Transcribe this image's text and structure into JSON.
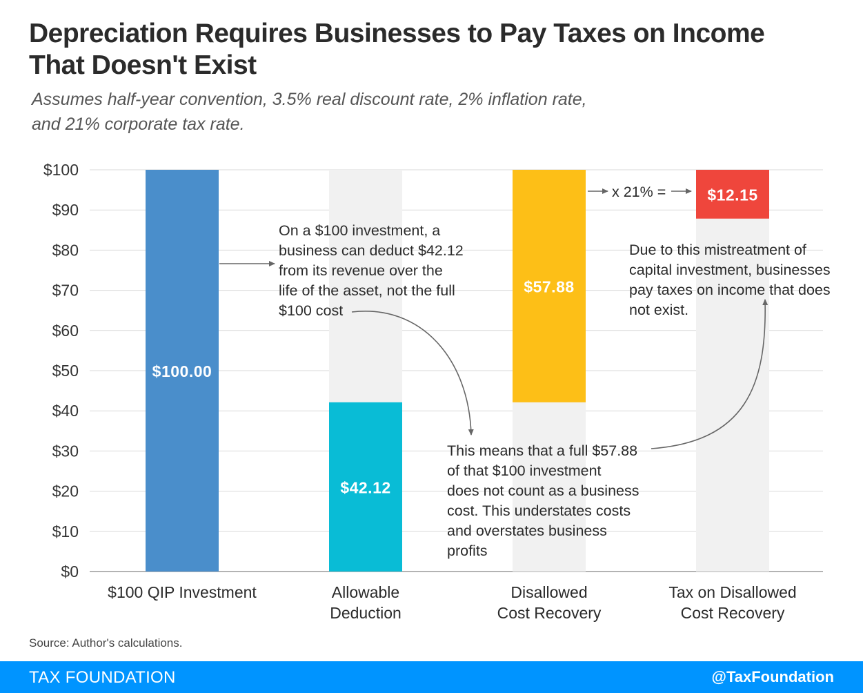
{
  "title_line1": "Depreciation Requires Businesses to Pay Taxes on Income",
  "title_line2": "That Doesn't Exist",
  "subtitle_line1": "Assumes half-year convention, 3.5% real discount rate, 2% inflation rate,",
  "subtitle_line2": "and 21% corporate tax rate.",
  "source": "Source: Author's calculations.",
  "footer": {
    "brand": "TAX FOUNDATION",
    "handle": "@TaxFoundation"
  },
  "colors": {
    "blue": "#4a8ecb",
    "teal": "#09bcd6",
    "yellow": "#fdbf17",
    "red": "#ef463c",
    "bg_bar": "#f1f1f1",
    "footer": "#0094ff"
  },
  "chart_data": {
    "type": "bar",
    "stacked": "waterfall",
    "ylim": [
      0,
      100
    ],
    "yticks": [
      0,
      10,
      20,
      30,
      40,
      50,
      60,
      70,
      80,
      90,
      100
    ],
    "ytick_labels": [
      "$0",
      "$10",
      "$20",
      "$30",
      "$40",
      "$50",
      "$60",
      "$70",
      "$80",
      "$90",
      "$100"
    ],
    "grid": true,
    "categories": [
      [
        "$100 QIP Investment"
      ],
      [
        "Allowable",
        "Deduction"
      ],
      [
        "Disallowed",
        "Cost Recovery"
      ],
      [
        "Tax on Disallowed",
        "Cost Recovery"
      ]
    ],
    "bars": [
      {
        "base": 0,
        "value": 100.0,
        "label": "$100.00",
        "color": "#4a8ecb",
        "background": false
      },
      {
        "base": 0,
        "value": 42.12,
        "label": "$42.12",
        "color": "#09bcd6",
        "background": true
      },
      {
        "base": 42.12,
        "value": 57.88,
        "label": "$57.88",
        "color": "#fdbf17",
        "background": true
      },
      {
        "base": 87.85,
        "value": 12.15,
        "label": "$12.15",
        "color": "#ef463c",
        "background": true
      }
    ],
    "annotations": [
      {
        "lines": [
          "On a $100 investment, a",
          "business can deduct $42.12",
          "from its revenue over the",
          "life of the asset, not the full",
          "$100 cost"
        ]
      },
      {
        "lines": [
          "This means that a full $57.88",
          "of that $100 investment",
          "does not count as a business",
          "cost. This understates costs",
          "and overstates business",
          "profits"
        ]
      },
      {
        "lines": [
          "Due to this mistreatment of",
          "capital investment, businesses",
          "pay taxes on income that does",
          "not exist."
        ]
      },
      {
        "lines": [
          "x 21% ="
        ]
      }
    ]
  }
}
